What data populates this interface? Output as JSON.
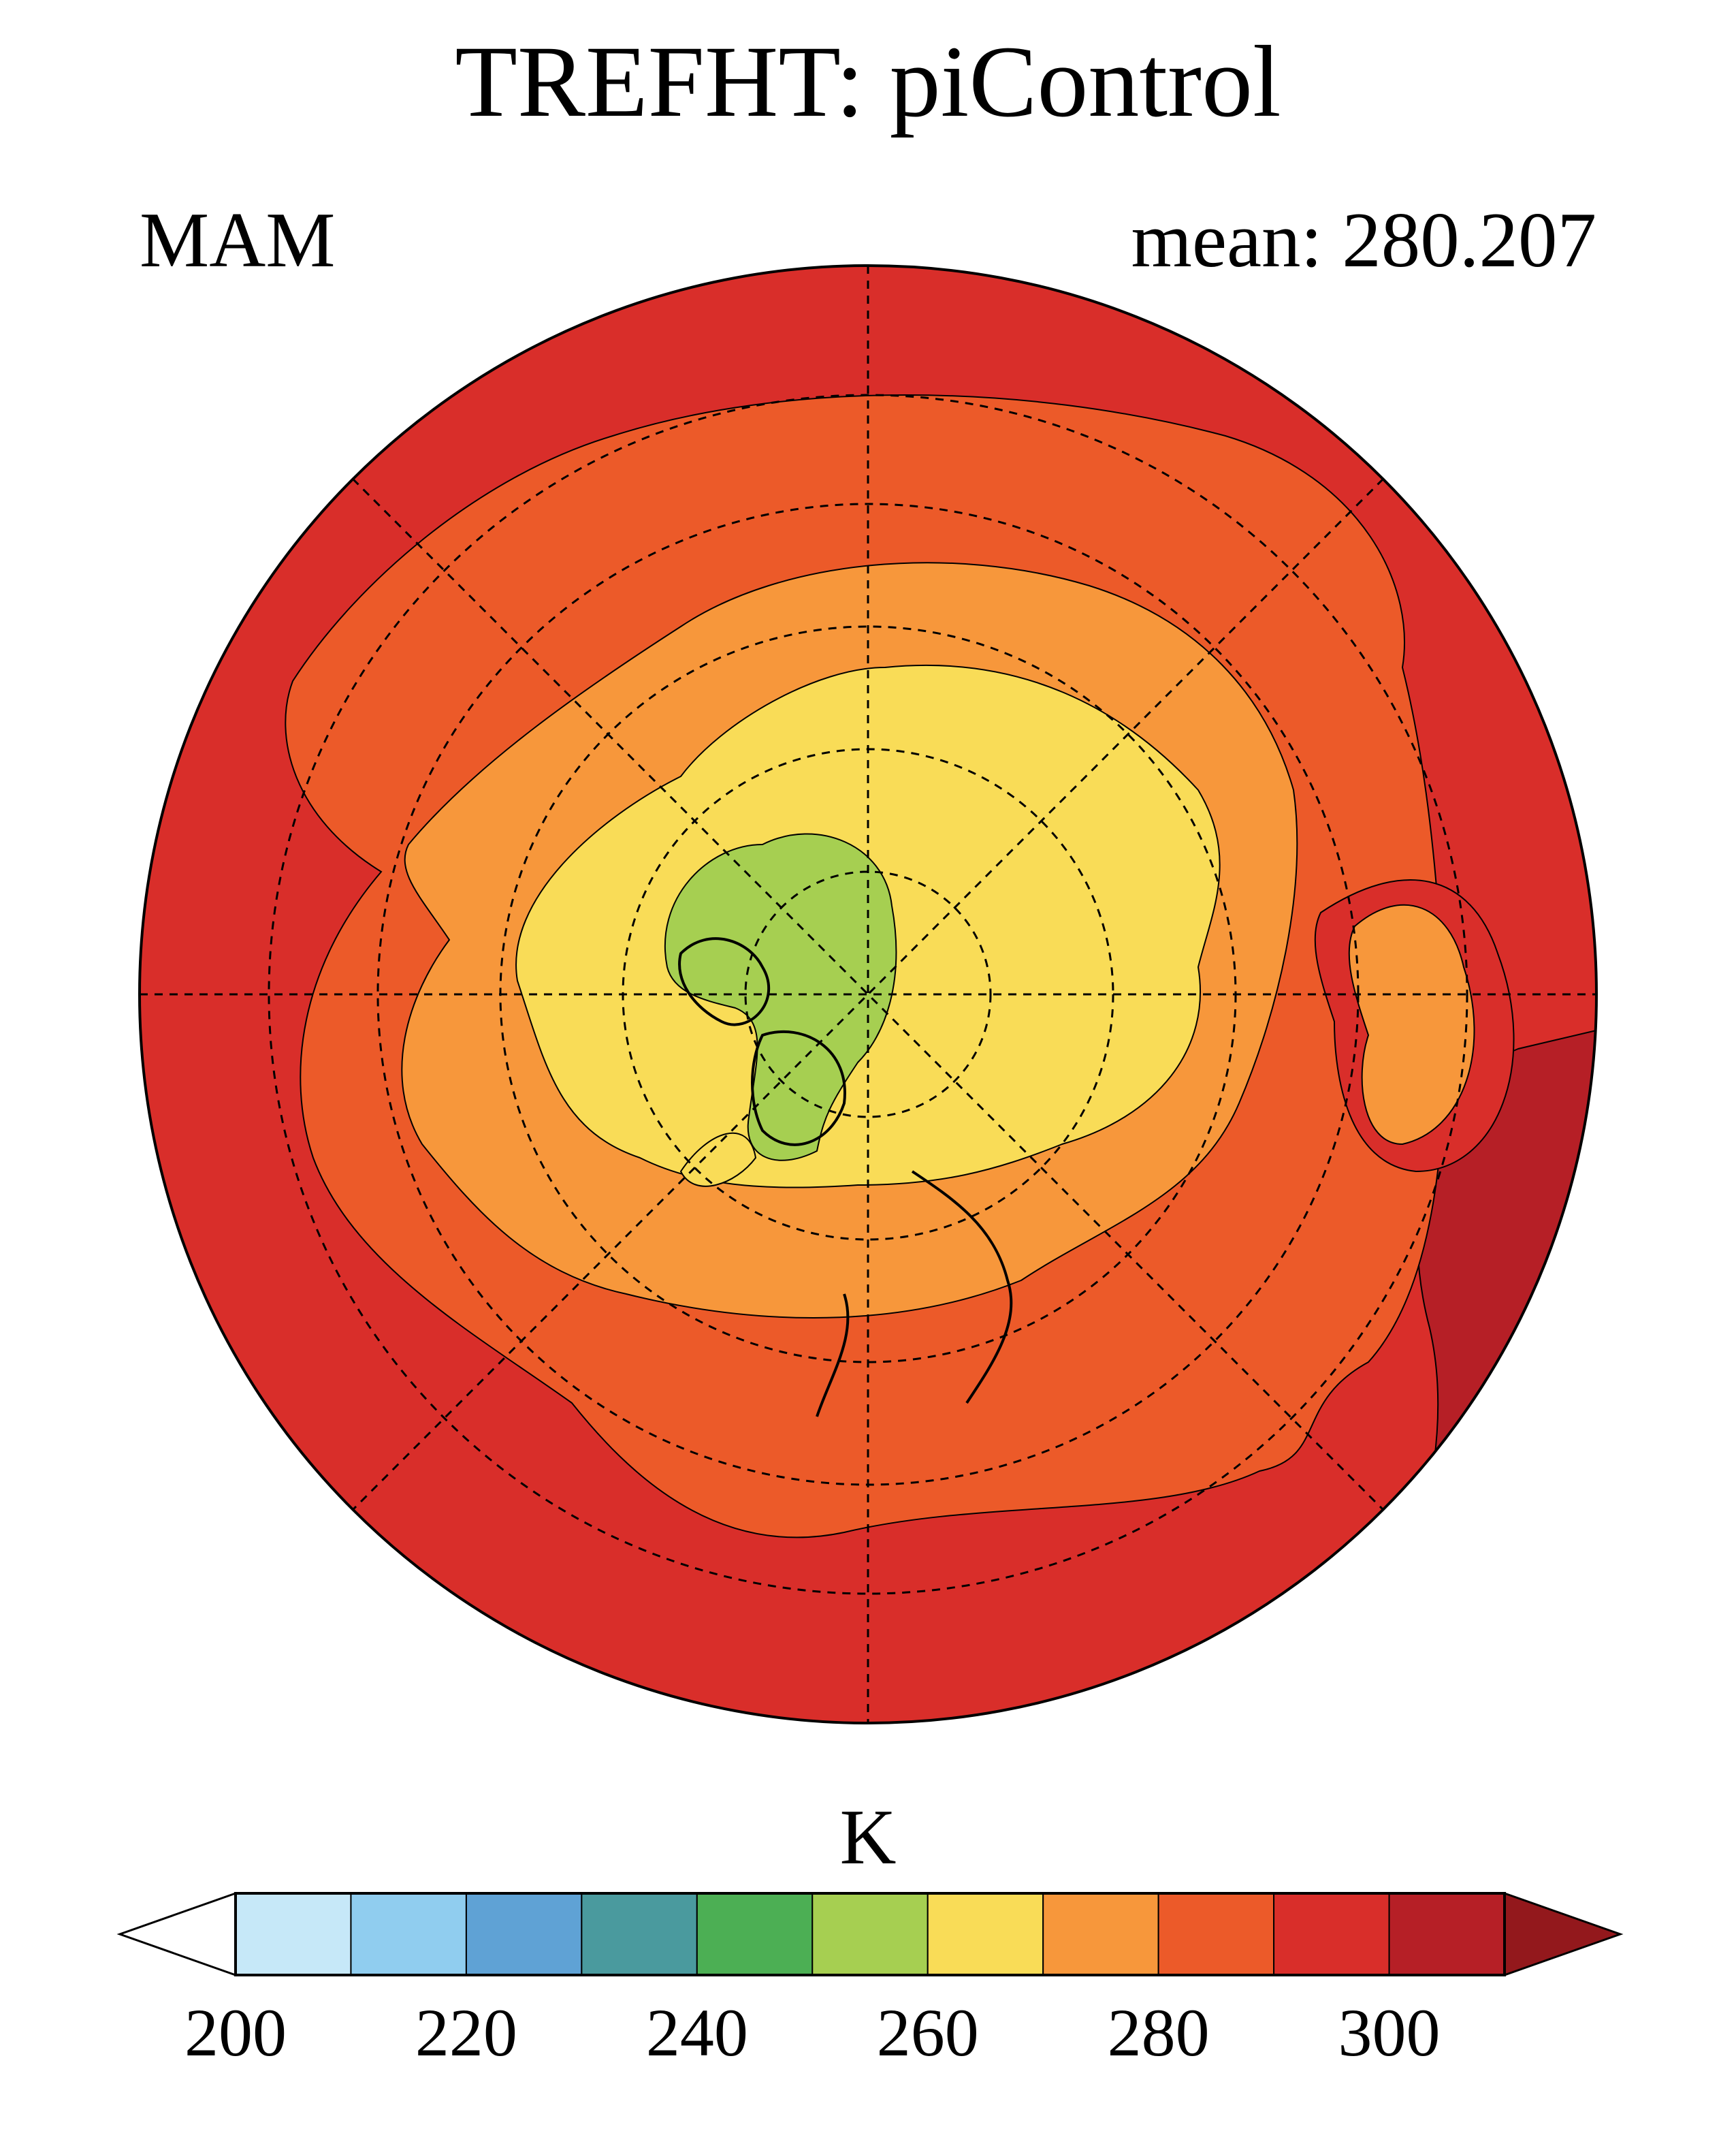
{
  "chart_data": {
    "type": "heatmap",
    "subtype": "polar-stereographic contour map (Northern Hemisphere)",
    "title": "TREFHT: piControl",
    "left_label": "MAM",
    "right_label": "mean: 280.207",
    "mean": 280.207,
    "units": "K",
    "levels": [
      200,
      210,
      220,
      230,
      240,
      250,
      260,
      270,
      280,
      290,
      300,
      310
    ],
    "colorbar_tick_labels": [
      "200",
      "220",
      "240",
      "260",
      "280",
      "300"
    ],
    "colorbar_ticks": [
      200,
      220,
      240,
      260,
      280,
      300
    ],
    "colors": {
      "below": "#ffffff",
      "bins": [
        "#c6e8f8",
        "#90cdef",
        "#5fa2d5",
        "#4a9a9e",
        "#4caf54",
        "#a6cf51",
        "#f9dc57",
        "#f7973b",
        "#ec5a29",
        "#d92e2a",
        "#b61f26"
      ],
      "above": "#93181c"
    },
    "field_summary": {
      "arctic_min_band": [
        250,
        260
      ],
      "central_arctic_band": [
        260,
        270
      ],
      "subtropics_band": [
        290,
        300
      ],
      "hottest_band_region": [
        300,
        310
      ]
    }
  }
}
